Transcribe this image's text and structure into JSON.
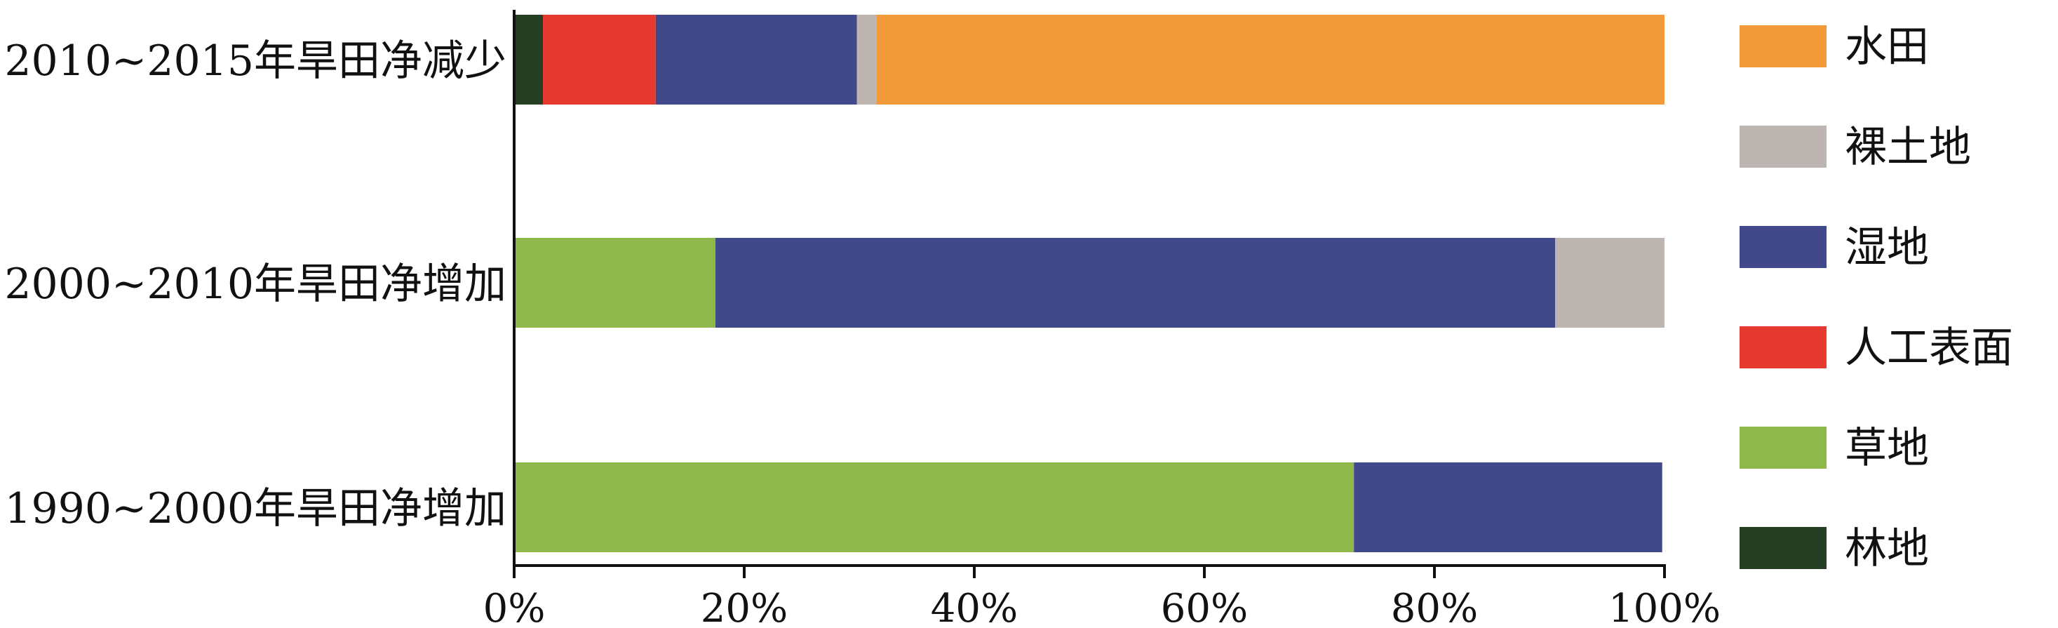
{
  "chart_data": {
    "type": "bar",
    "orientation": "horizontal",
    "stacked": true,
    "categories": [
      "2010~2015年旱田净减少",
      "2000~2010年旱田净增加",
      "1990~2000年旱田净增加"
    ],
    "series": [
      {
        "name": "林地",
        "color": "#263e23",
        "values": [
          2.5,
          0,
          0
        ]
      },
      {
        "name": "人工表面",
        "color": "#e63a31",
        "values": [
          9.8,
          0,
          0
        ]
      },
      {
        "name": "草地",
        "color": "#8eb84a",
        "values": [
          0,
          17.5,
          73
        ]
      },
      {
        "name": "湿地",
        "color": "#42498a",
        "values": [
          17.5,
          73,
          26.8
        ]
      },
      {
        "name": "裸土地",
        "color": "#bdb5b2",
        "values": [
          1.7,
          9.5,
          0
        ]
      },
      {
        "name": "水田",
        "color": "#f2993a",
        "values": [
          68.5,
          0,
          0
        ]
      }
    ],
    "legend_order": [
      "水田",
      "裸土地",
      "湿地",
      "人工表面",
      "草地",
      "林地"
    ],
    "xlim": [
      0,
      100
    ],
    "xticks": [
      0,
      20,
      40,
      60,
      80,
      100
    ],
    "xtick_labels": [
      "0%",
      "20%",
      "40%",
      "60%",
      "80%",
      "100%"
    ],
    "title": "",
    "xlabel": "",
    "ylabel": "",
    "grid": false,
    "legend_position": "right"
  }
}
